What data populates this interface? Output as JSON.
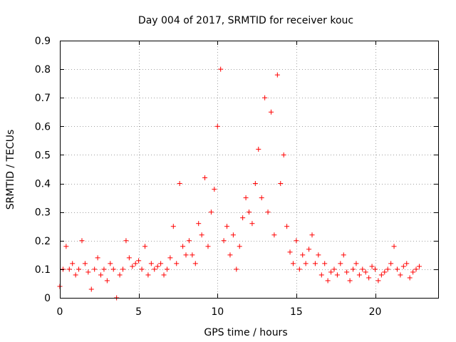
{
  "chart_data": {
    "type": "scatter",
    "title": "Day 004 of 2017, SRMTID for receiver kouc",
    "xlabel": "GPS time / hours",
    "ylabel": "SRMTID / TECUs",
    "xlim": [
      0,
      24
    ],
    "ylim": [
      0,
      0.9
    ],
    "grid": true,
    "marker": "+",
    "color": "#ff0000",
    "xticks": [
      0,
      5,
      10,
      15,
      20
    ],
    "xtick_labels": [
      "0",
      "5",
      "10",
      "15",
      "20"
    ],
    "yticks": [
      0,
      0.1,
      0.2,
      0.3,
      0.4,
      0.5,
      0.6,
      0.7,
      0.8,
      0.9
    ],
    "ytick_labels": [
      "0",
      "0.1",
      "0.2",
      "0.3",
      "0.4",
      "0.5",
      "0.6",
      "0.7",
      "0.8",
      "0.9"
    ],
    "series": [
      {
        "name": "SRMTID",
        "x": [
          0.0,
          0.2,
          0.4,
          0.6,
          0.8,
          1.0,
          1.2,
          1.4,
          1.6,
          1.8,
          2.0,
          2.2,
          2.4,
          2.6,
          2.8,
          3.0,
          3.2,
          3.4,
          3.6,
          3.8,
          4.0,
          4.2,
          4.4,
          4.6,
          4.8,
          5.0,
          5.2,
          5.4,
          5.6,
          5.8,
          6.0,
          6.2,
          6.4,
          6.6,
          6.8,
          7.0,
          7.2,
          7.4,
          7.6,
          7.8,
          8.0,
          8.2,
          8.4,
          8.6,
          8.8,
          9.0,
          9.2,
          9.4,
          9.6,
          9.8,
          10.0,
          10.2,
          10.4,
          10.6,
          10.8,
          11.0,
          11.2,
          11.4,
          11.6,
          11.8,
          12.0,
          12.2,
          12.4,
          12.6,
          12.8,
          13.0,
          13.2,
          13.4,
          13.6,
          13.8,
          14.0,
          14.2,
          14.4,
          14.6,
          14.8,
          15.0,
          15.2,
          15.4,
          15.6,
          15.8,
          16.0,
          16.2,
          16.4,
          16.6,
          16.8,
          17.0,
          17.2,
          17.4,
          17.6,
          17.8,
          18.0,
          18.2,
          18.4,
          18.6,
          18.8,
          19.0,
          19.2,
          19.4,
          19.6,
          19.8,
          20.0,
          20.2,
          20.4,
          20.6,
          20.8,
          21.0,
          21.2,
          21.4,
          21.6,
          21.8,
          22.0,
          22.2,
          22.4,
          22.6,
          22.8
        ],
        "y": [
          0.04,
          0.1,
          0.18,
          0.1,
          0.12,
          0.08,
          0.1,
          0.2,
          0.12,
          0.09,
          0.03,
          0.1,
          0.14,
          0.08,
          0.1,
          0.06,
          0.12,
          0.1,
          0.0,
          0.08,
          0.1,
          0.2,
          0.14,
          0.11,
          0.12,
          0.13,
          0.1,
          0.18,
          0.08,
          0.12,
          0.1,
          0.11,
          0.12,
          0.08,
          0.1,
          0.14,
          0.25,
          0.12,
          0.4,
          0.18,
          0.15,
          0.2,
          0.15,
          0.12,
          0.26,
          0.22,
          0.42,
          0.18,
          0.3,
          0.38,
          0.6,
          0.8,
          0.2,
          0.25,
          0.15,
          0.22,
          0.1,
          0.18,
          0.28,
          0.35,
          0.3,
          0.26,
          0.4,
          0.52,
          0.35,
          0.7,
          0.3,
          0.65,
          0.22,
          0.78,
          0.4,
          0.5,
          0.25,
          0.16,
          0.12,
          0.2,
          0.1,
          0.15,
          0.12,
          0.17,
          0.22,
          0.12,
          0.15,
          0.08,
          0.12,
          0.06,
          0.09,
          0.1,
          0.08,
          0.12,
          0.15,
          0.09,
          0.06,
          0.1,
          0.12,
          0.08,
          0.1,
          0.09,
          0.07,
          0.11,
          0.1,
          0.06,
          0.08,
          0.09,
          0.1,
          0.12,
          0.18,
          0.1,
          0.08,
          0.11,
          0.12,
          0.07,
          0.09,
          0.1,
          0.11
        ]
      }
    ]
  }
}
